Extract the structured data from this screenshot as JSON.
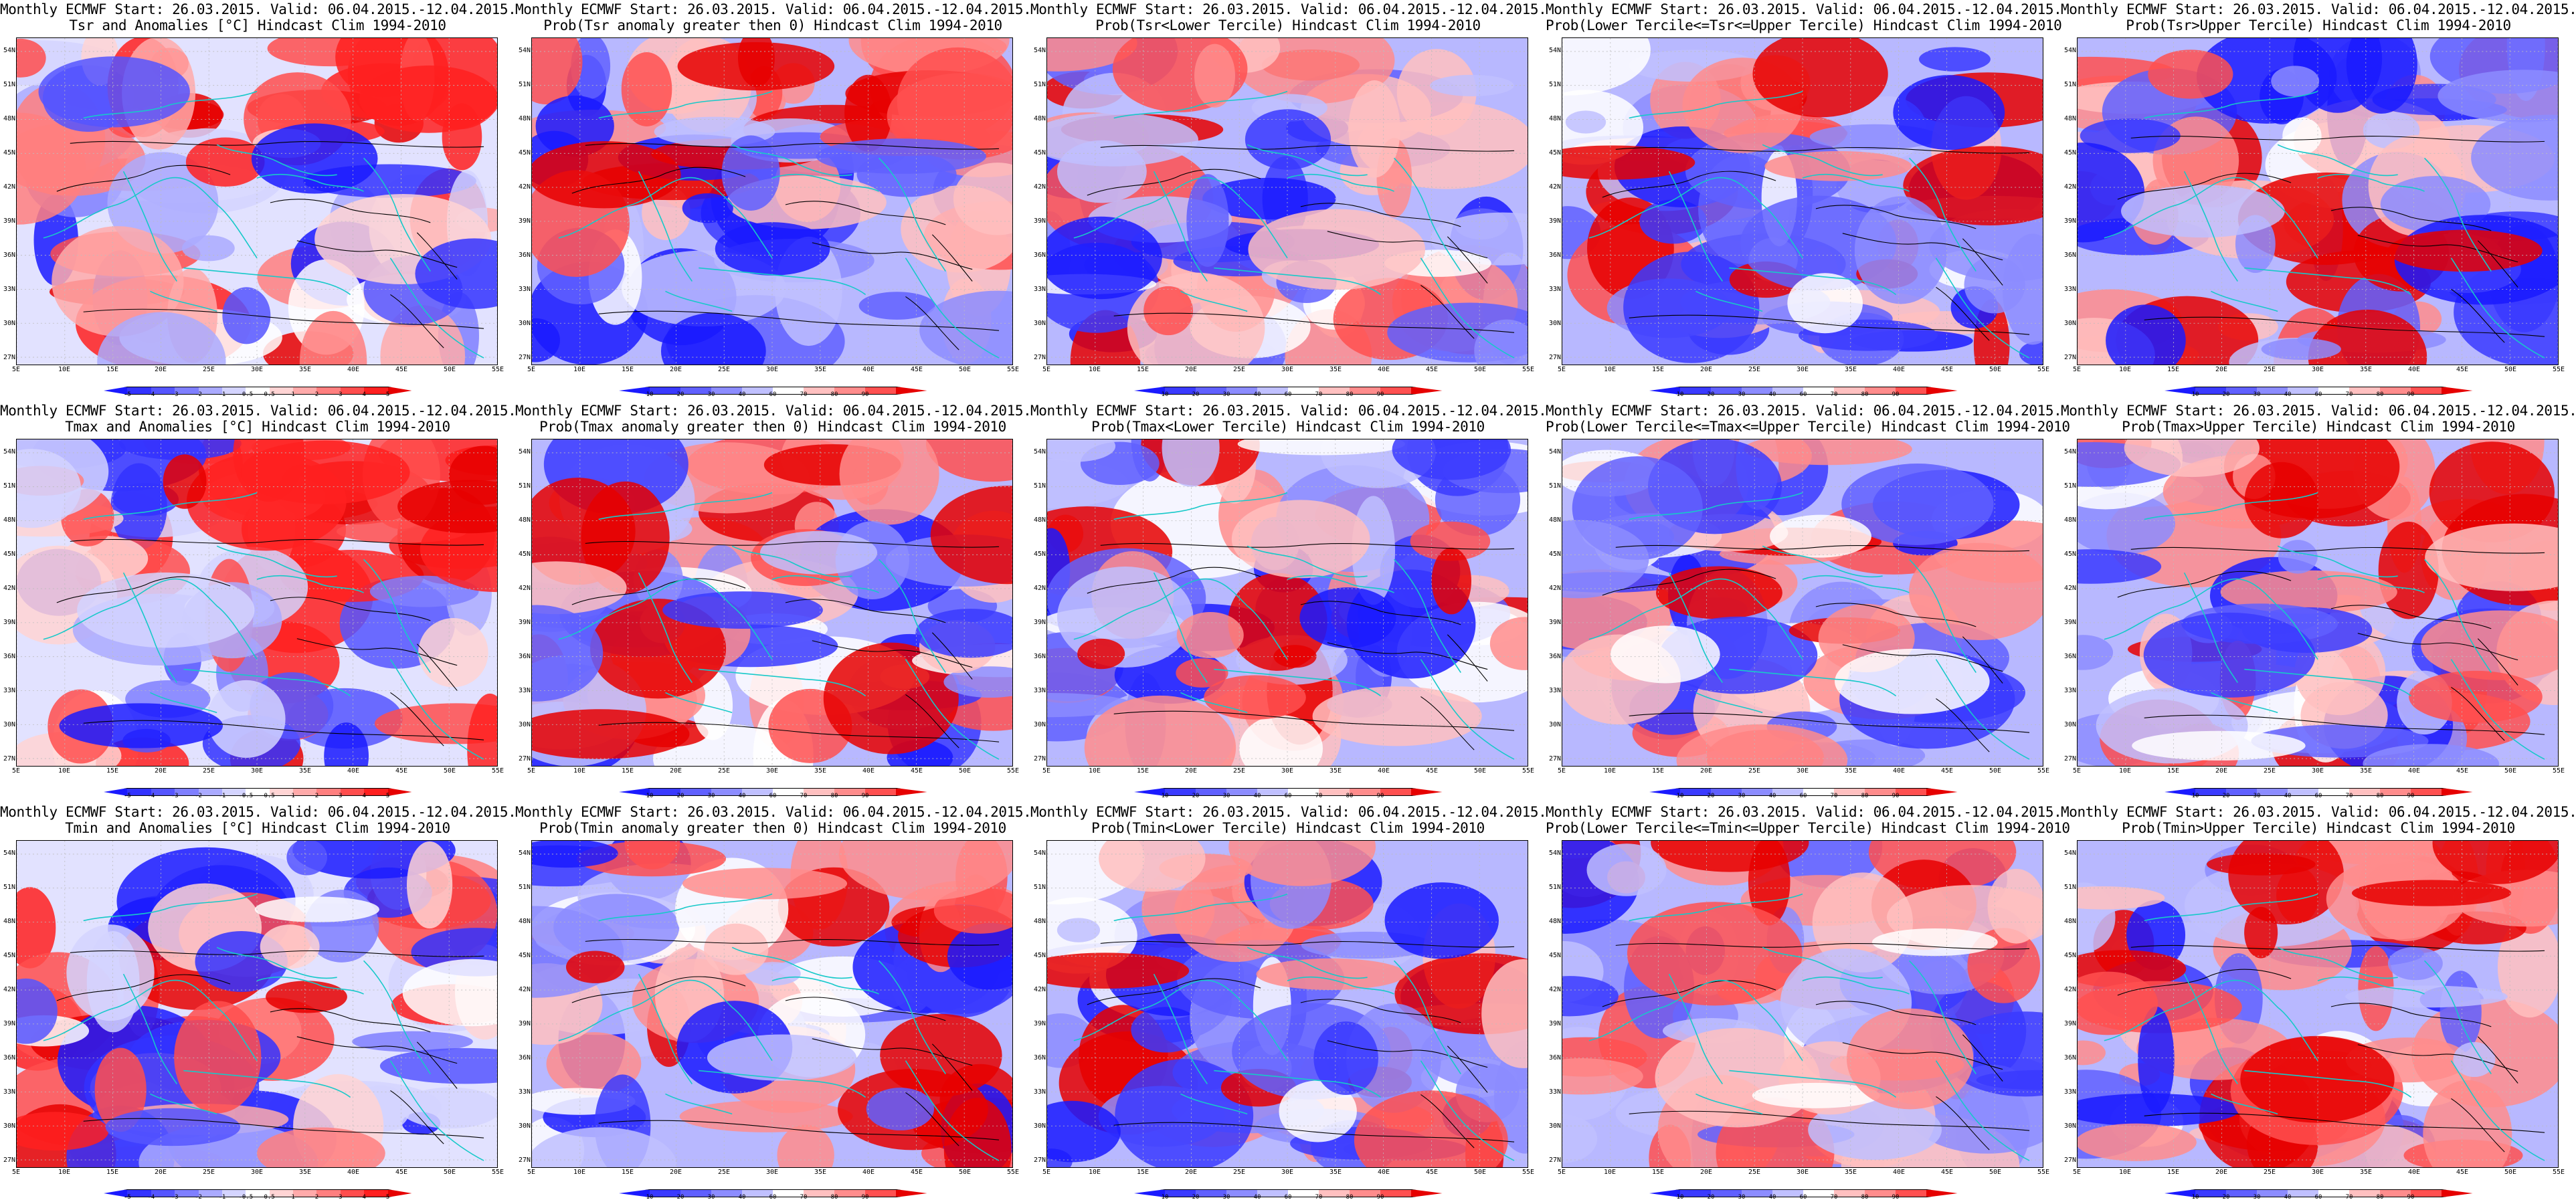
{
  "panels": [
    {
      "title1": "Monthly ECMWF Start: 26.03.2015. Valid: 06.04.2015.-12.04.2015.",
      "title2": "Tsr and Anomalies [°C] Hindcast Clim 1994-2010",
      "scale": "anomaly"
    },
    {
      "title1": "Monthly ECMWF Start: 26.03.2015. Valid: 06.04.2015.-12.04.2015.",
      "title2": "Prob(Tsr anomaly greater then 0) Hindcast Clim 1994-2010",
      "scale": "prob"
    },
    {
      "title1": "Monthly ECMWF Start: 26.03.2015. Valid: 06.04.2015.-12.04.2015.",
      "title2": "Prob(Tsr<Lower Tercile) Hindcast Clim 1994-2010",
      "scale": "prob"
    },
    {
      "title1": "Monthly ECMWF Start: 26.03.2015. Valid: 06.04.2015.-12.04.2015.",
      "title2": "Prob(Lower Tercile<=Tsr<=Upper Tercile) Hindcast Clim 1994-2010",
      "scale": "prob"
    },
    {
      "title1": "Monthly ECMWF Start: 26.03.2015. Valid: 06.04.2015.-12.04.2015.",
      "title2": "Prob(Tsr>Upper Tercile) Hindcast Clim 1994-2010",
      "scale": "prob"
    },
    {
      "title1": "Monthly ECMWF Start: 26.03.2015. Valid: 06.04.2015.-12.04.2015.",
      "title2": "Tmax and Anomalies [°C] Hindcast Clim 1994-2010",
      "scale": "anomaly"
    },
    {
      "title1": "Monthly ECMWF Start: 26.03.2015. Valid: 06.04.2015.-12.04.2015.",
      "title2": "Prob(Tmax anomaly greater then 0) Hindcast Clim 1994-2010",
      "scale": "prob"
    },
    {
      "title1": "Monthly ECMWF Start: 26.03.2015. Valid: 06.04.2015.-12.04.2015.",
      "title2": "Prob(Tmax<Lower Tercile) Hindcast Clim 1994-2010",
      "scale": "prob"
    },
    {
      "title1": "Monthly ECMWF Start: 26.03.2015. Valid: 06.04.2015.-12.04.2015.",
      "title2": "Prob(Lower Tercile<=Tmax<=Upper Tercile) Hindcast Clim 1994-2010",
      "scale": "prob"
    },
    {
      "title1": "Monthly ECMWF Start: 26.03.2015. Valid: 06.04.2015.-12.04.2015.",
      "title2": "Prob(Tmax>Upper Tercile) Hindcast Clim 1994-2010",
      "scale": "prob"
    },
    {
      "title1": "Monthly ECMWF Start: 26.03.2015. Valid: 06.04.2015.-12.04.2015.",
      "title2": "Tmin and Anomalies [°C] Hindcast Clim 1994-2010",
      "scale": "anomaly"
    },
    {
      "title1": "Monthly ECMWF Start: 26.03.2015. Valid: 06.04.2015.-12.04.2015.",
      "title2": "Prob(Tmin anomaly greater then 0) Hindcast Clim 1994-2010",
      "scale": "prob"
    },
    {
      "title1": "Monthly ECMWF Start: 26.03.2015. Valid: 06.04.2015.-12.04.2015.",
      "title2": "Prob(Tmin<Lower Tercile) Hindcast Clim 1994-2010",
      "scale": "prob"
    },
    {
      "title1": "Monthly ECMWF Start: 26.03.2015. Valid: 06.04.2015.-12.04.2015.",
      "title2": "Prob(Lower Tercile<=Tmin<=Upper Tercile) Hindcast Clim 1994-2010",
      "scale": "prob"
    },
    {
      "title1": "Monthly ECMWF Start: 26.03.2015. Valid: 06.04.2015.-12.04.2015.",
      "title2": "Prob(Tmin>Upper Tercile) Hindcast Clim 1994-2010",
      "scale": "prob"
    }
  ],
  "lat_ticks": [
    "54N",
    "51N",
    "48N",
    "45N",
    "42N",
    "39N",
    "36N",
    "33N",
    "30N",
    "27N"
  ],
  "lon_ticks": [
    "5E",
    "10E",
    "15E",
    "20E",
    "25E",
    "30E",
    "35E",
    "40E",
    "45E",
    "50E",
    "55E"
  ],
  "anomaly_bar": {
    "ticks": [
      "-5",
      "-4",
      "-3",
      "-2",
      "-1",
      "-0.5",
      "0.5",
      "1",
      "2",
      "3",
      "4",
      "5"
    ],
    "colors": [
      "#1a1aff",
      "#3333ff",
      "#5555ff",
      "#7f7fff",
      "#aaaaff",
      "#d4d4ff",
      "#ffffff",
      "#ffd4d4",
      "#ffaaaa",
      "#ff7f7f",
      "#ff4d4d",
      "#ff2020",
      "#e60000"
    ]
  },
  "prob_bar": {
    "ticks": [
      "10",
      "20",
      "30",
      "40",
      "60",
      "70",
      "80",
      "90"
    ],
    "colors": [
      "#1a1aff",
      "#3a3aff",
      "#6060ff",
      "#8c8cff",
      "#c0c0ff",
      "#ffffff",
      "#ffc0c0",
      "#ff8c8c",
      "#ff5050",
      "#e60000"
    ]
  },
  "colors": {
    "coast": "#17c9c9",
    "contour": "#000000",
    "grid": "#bdbdbd"
  }
}
